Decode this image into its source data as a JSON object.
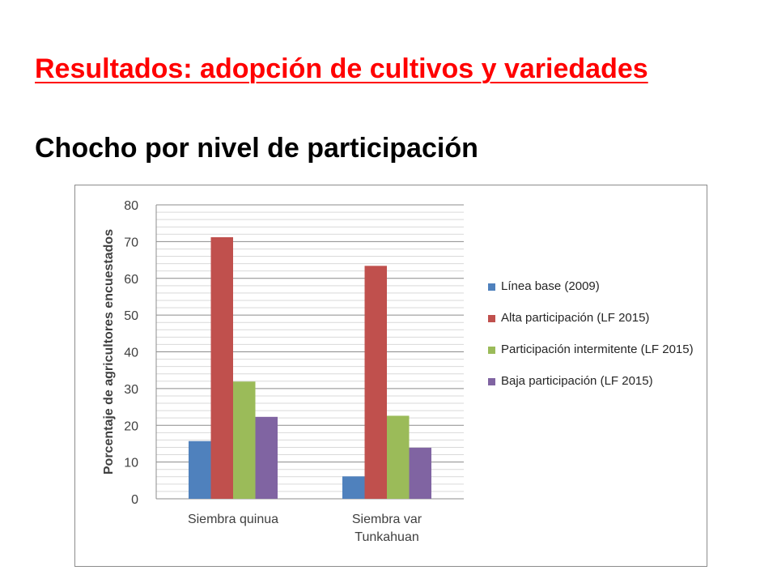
{
  "slide": {
    "title": "Resultados: adopción de cultivos y variedades",
    "subtitle": "Chocho por nivel de participación"
  },
  "colors": {
    "title": "#ff0000",
    "series": [
      "#4f81bd",
      "#c0504d",
      "#9bbb59",
      "#8064a2"
    ]
  },
  "chart_data": {
    "type": "bar",
    "title": "",
    "xlabel": "",
    "ylabel": "Porcentaje de agricultores encuestados",
    "ylim": [
      0,
      80
    ],
    "yticks": [
      0,
      10,
      20,
      30,
      40,
      50,
      60,
      70,
      80
    ],
    "grid": true,
    "legend_position": "right",
    "categories": [
      "Siembra quinua",
      "Siembra var Tunkahuan"
    ],
    "category_lines": [
      [
        "Siembra quinua"
      ],
      [
        "Siembra var",
        "Tunkahuan"
      ]
    ],
    "series": [
      {
        "name": "Línea base (2009)",
        "values": [
          15.7,
          6.1
        ]
      },
      {
        "name": "Alta participación (LF 2015)",
        "values": [
          71.2,
          63.4
        ]
      },
      {
        "name": "Participación intermitente (LF 2015)",
        "values": [
          31.9,
          22.6
        ]
      },
      {
        "name": "Baja participación (LF 2015)",
        "values": [
          22.3,
          13.9
        ]
      }
    ]
  }
}
